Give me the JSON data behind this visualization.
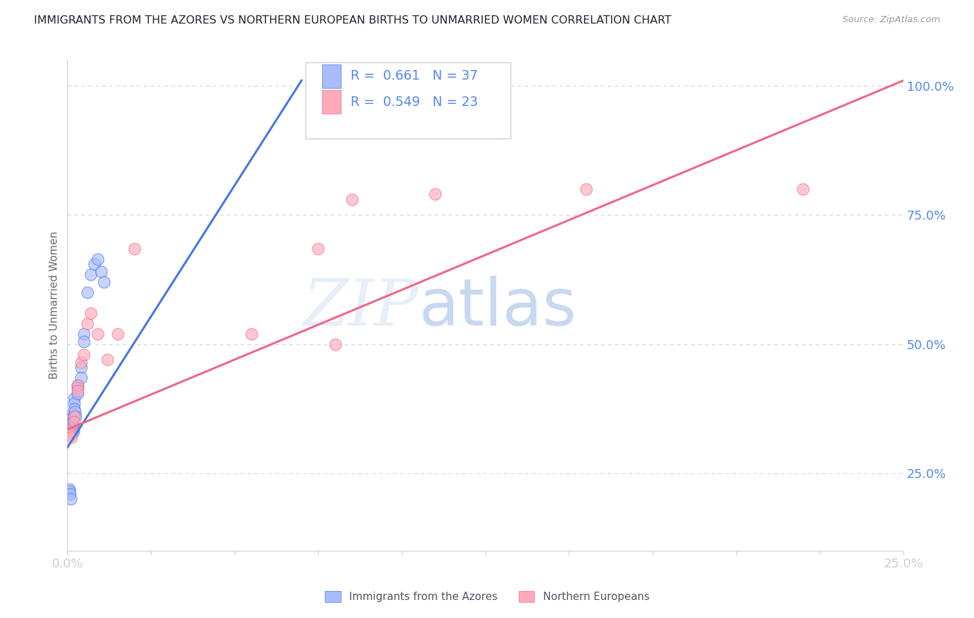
{
  "title": "IMMIGRANTS FROM THE AZORES VS NORTHERN EUROPEAN BIRTHS TO UNMARRIED WOMEN CORRELATION CHART",
  "source": "Source: ZipAtlas.com",
  "ylabel": "Births to Unmarried Women",
  "legend_label_blue": "Immigrants from the Azores",
  "legend_label_pink": "Northern Europeans",
  "R_blue": 0.661,
  "N_blue": 37,
  "R_pink": 0.549,
  "N_pink": 23,
  "blue_color": "#AABBFF",
  "pink_color": "#FFAABB",
  "blue_line_color": "#4477DD",
  "pink_line_color": "#EE6688",
  "axis_label_color": "#5588EE",
  "grid_color": "#CCCCDD",
  "blue_scatter_x": [
    0.0005,
    0.0005,
    0.0006,
    0.0008,
    0.0009,
    0.001,
    0.001,
    0.001,
    0.0012,
    0.0013,
    0.0014,
    0.0015,
    0.0016,
    0.0017,
    0.0018,
    0.002,
    0.002,
    0.002,
    0.0022,
    0.0024,
    0.003,
    0.003,
    0.003,
    0.004,
    0.004,
    0.005,
    0.005,
    0.006,
    0.007,
    0.008,
    0.009,
    0.01,
    0.011,
    0.0005,
    0.0006,
    0.0007,
    0.001
  ],
  "blue_scatter_y": [
    0.355,
    0.345,
    0.34,
    0.335,
    0.335,
    0.36,
    0.355,
    0.345,
    0.355,
    0.35,
    0.345,
    0.34,
    0.34,
    0.335,
    0.33,
    0.395,
    0.385,
    0.375,
    0.37,
    0.36,
    0.42,
    0.415,
    0.405,
    0.455,
    0.435,
    0.52,
    0.505,
    0.6,
    0.635,
    0.655,
    0.665,
    0.64,
    0.62,
    0.22,
    0.215,
    0.21,
    0.2
  ],
  "pink_scatter_x": [
    0.0006,
    0.0008,
    0.001,
    0.0012,
    0.002,
    0.002,
    0.003,
    0.003,
    0.004,
    0.005,
    0.006,
    0.007,
    0.009,
    0.012,
    0.015,
    0.02,
    0.055,
    0.075,
    0.08,
    0.085,
    0.11,
    0.155,
    0.22
  ],
  "pink_scatter_y": [
    0.335,
    0.33,
    0.325,
    0.32,
    0.36,
    0.35,
    0.42,
    0.41,
    0.465,
    0.48,
    0.54,
    0.56,
    0.52,
    0.47,
    0.52,
    0.685,
    0.52,
    0.685,
    0.5,
    0.78,
    0.79,
    0.8,
    0.8
  ],
  "blue_line_x0": 0.0,
  "blue_line_x1": 0.07,
  "blue_line_y0": 0.3,
  "blue_line_y1": 1.01,
  "pink_line_x0": 0.0,
  "pink_line_x1": 0.25,
  "pink_line_y0": 0.335,
  "pink_line_y1": 1.01,
  "xlim": [
    0.0,
    0.25
  ],
  "ylim": [
    0.1,
    1.05
  ],
  "yticks": [
    0.25,
    0.5,
    0.75,
    1.0
  ],
  "ytick_labels": [
    "25.0%",
    "50.0%",
    "75.0%",
    "100.0%"
  ],
  "xtick_left_label": "0.0%",
  "xtick_right_label": "25.0%"
}
